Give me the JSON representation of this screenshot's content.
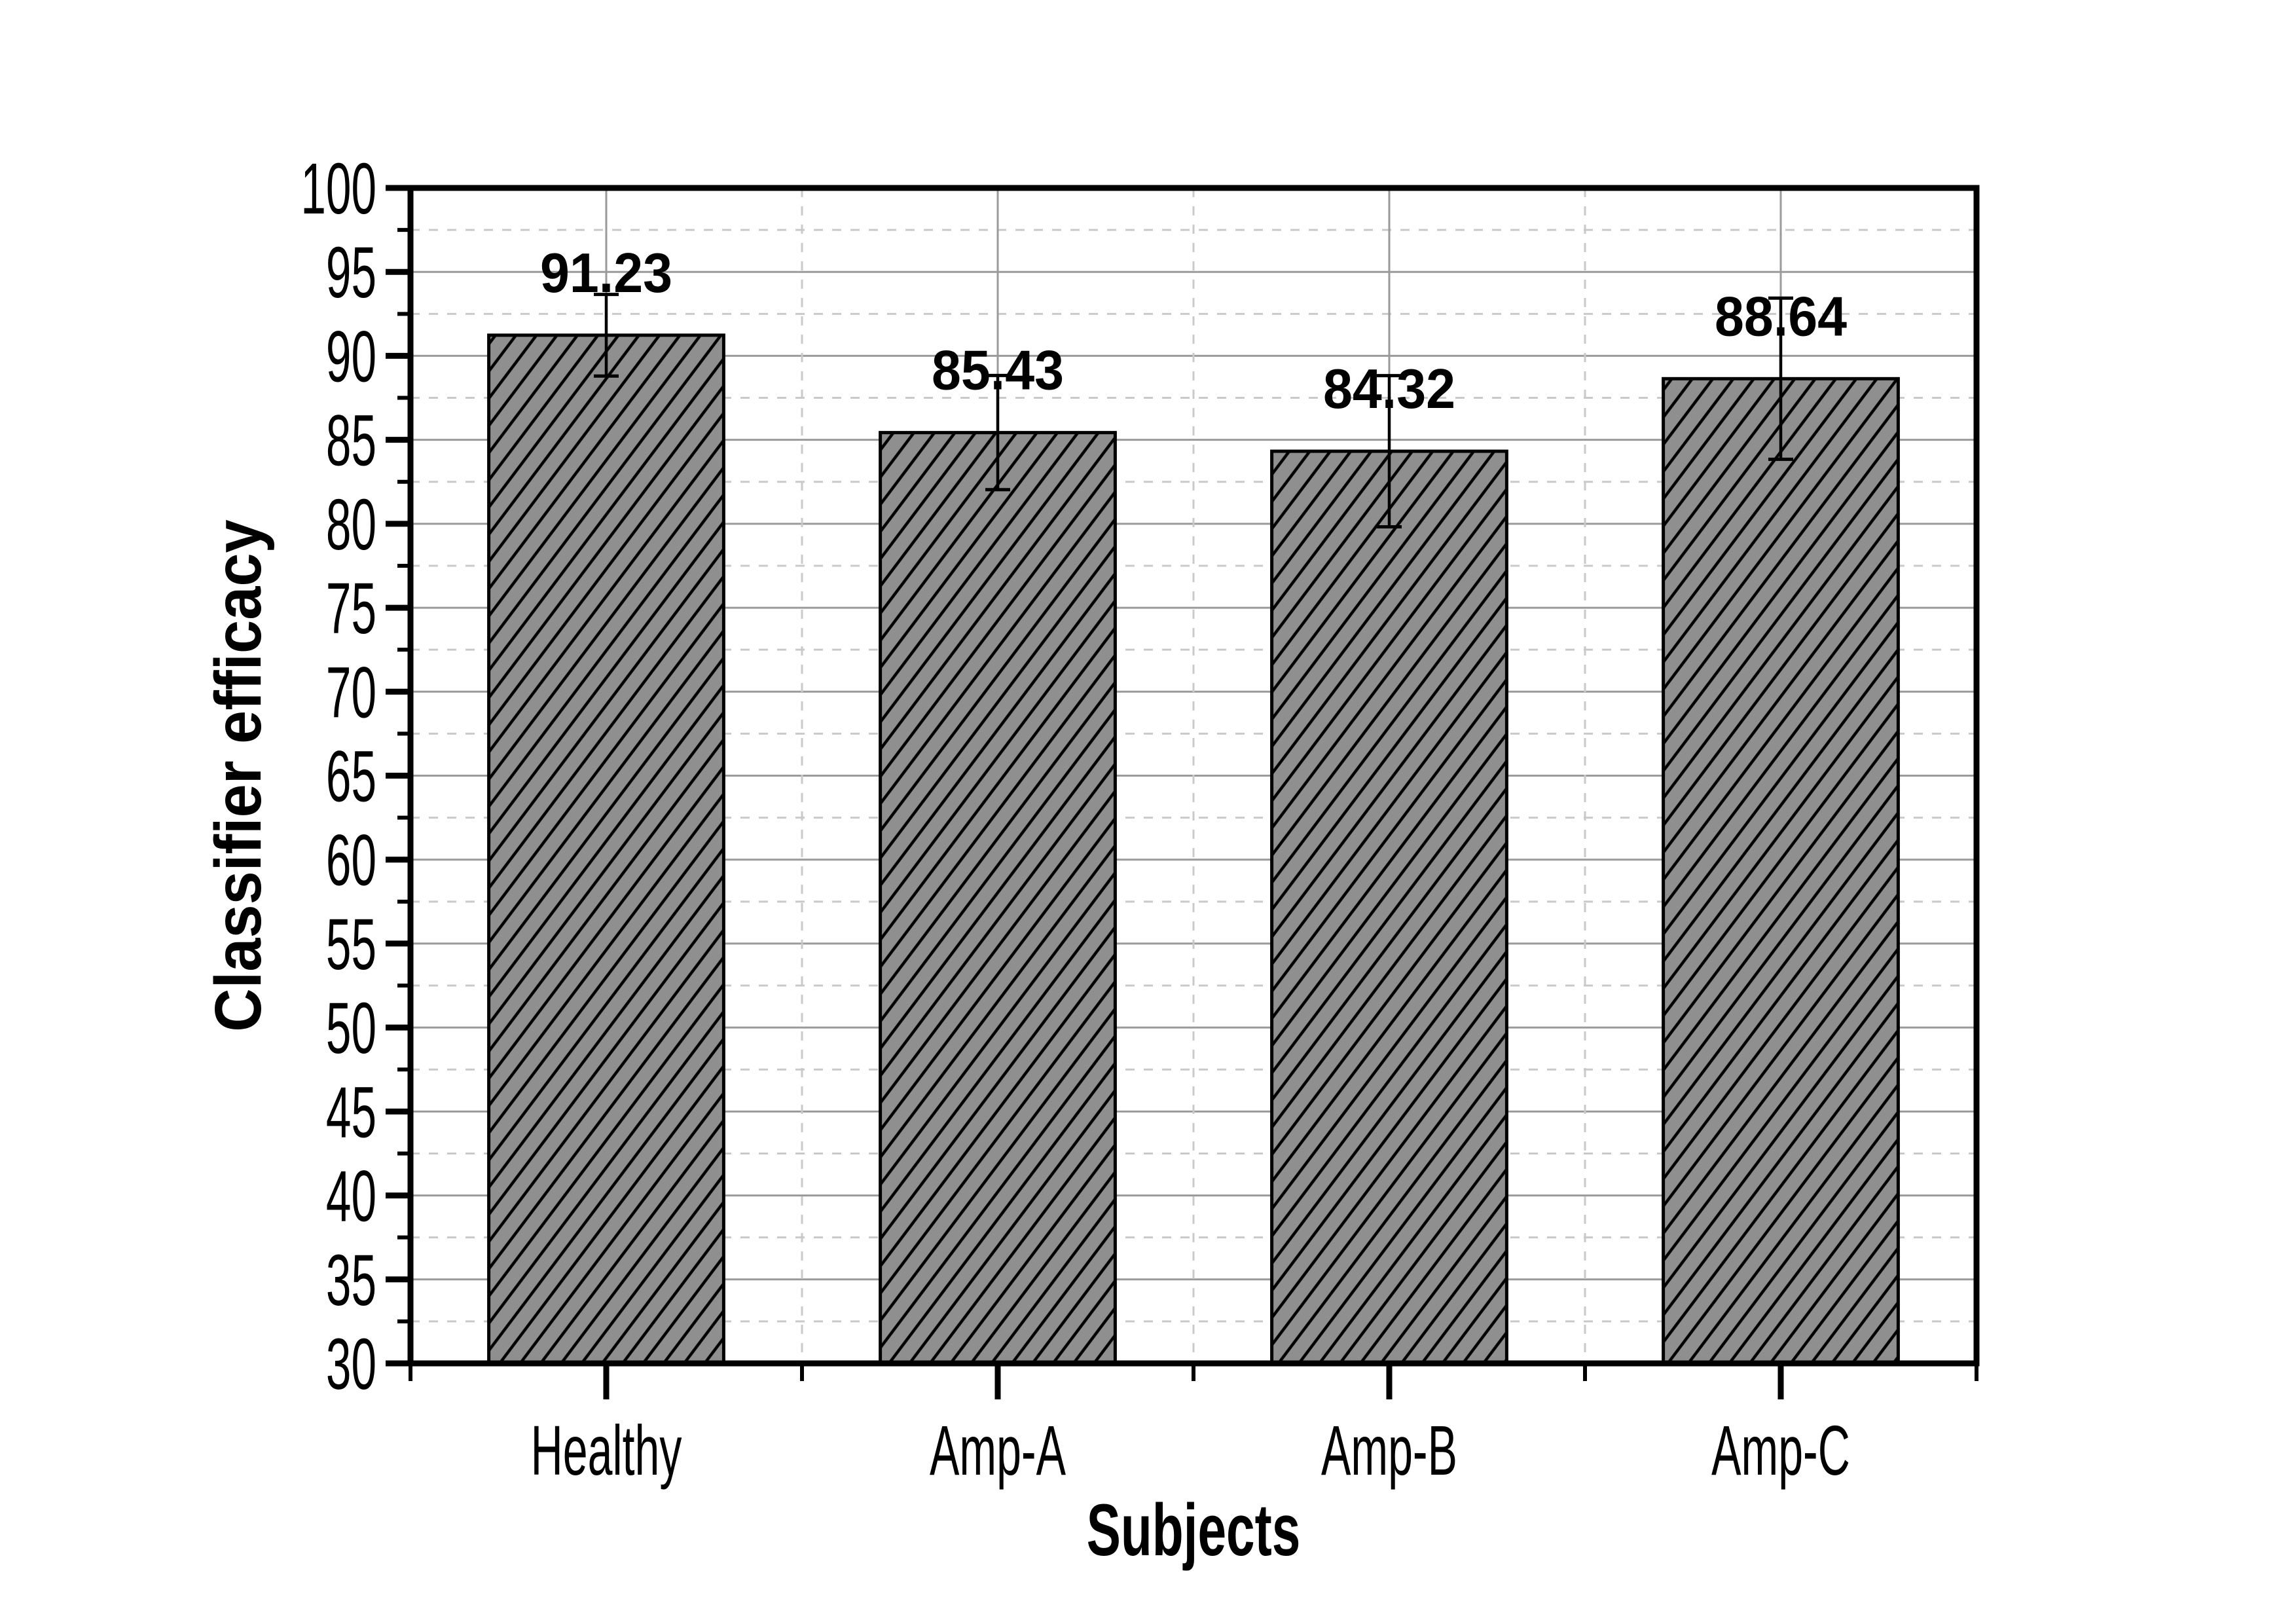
{
  "chart_data": {
    "type": "bar",
    "title": "",
    "categories": [
      "Healthy",
      "Amp-A",
      "Amp-B",
      "Amp-C"
    ],
    "values": [
      91.23,
      85.43,
      84.32,
      88.64
    ],
    "errors": [
      2.43,
      3.4,
      4.5,
      4.8
    ],
    "value_labels": [
      "91.23",
      "85.43",
      "84.32",
      "88.64"
    ],
    "xlabel": "Subjects",
    "ylabel": "Classifier efficacy",
    "ylim": [
      30,
      100
    ],
    "ytick_step": 5,
    "ytick_minor_step": 2.5,
    "ytick_labels": [
      "100",
      "95",
      "90",
      "85",
      "80",
      "75",
      "70",
      "65",
      "60",
      "55",
      "50",
      "45",
      "40",
      "35",
      "30"
    ],
    "bar_width_ratio": 0.6,
    "hatch_style": "diagonal-up",
    "grid": {
      "h_major": "solid",
      "h_minor": "dashed",
      "v_at_bar_centers": "solid",
      "v_at_boundaries": "dashed"
    },
    "legend_position": "none",
    "colors": {
      "background": "#ffffff",
      "bar_fill": "#8f8f8f",
      "hatch": "#000000",
      "bar_border": "#000000",
      "grid_major": "#9a9a9a",
      "grid_minor": "#c9c9c9",
      "axis": "#000000",
      "text": "#000000"
    }
  }
}
